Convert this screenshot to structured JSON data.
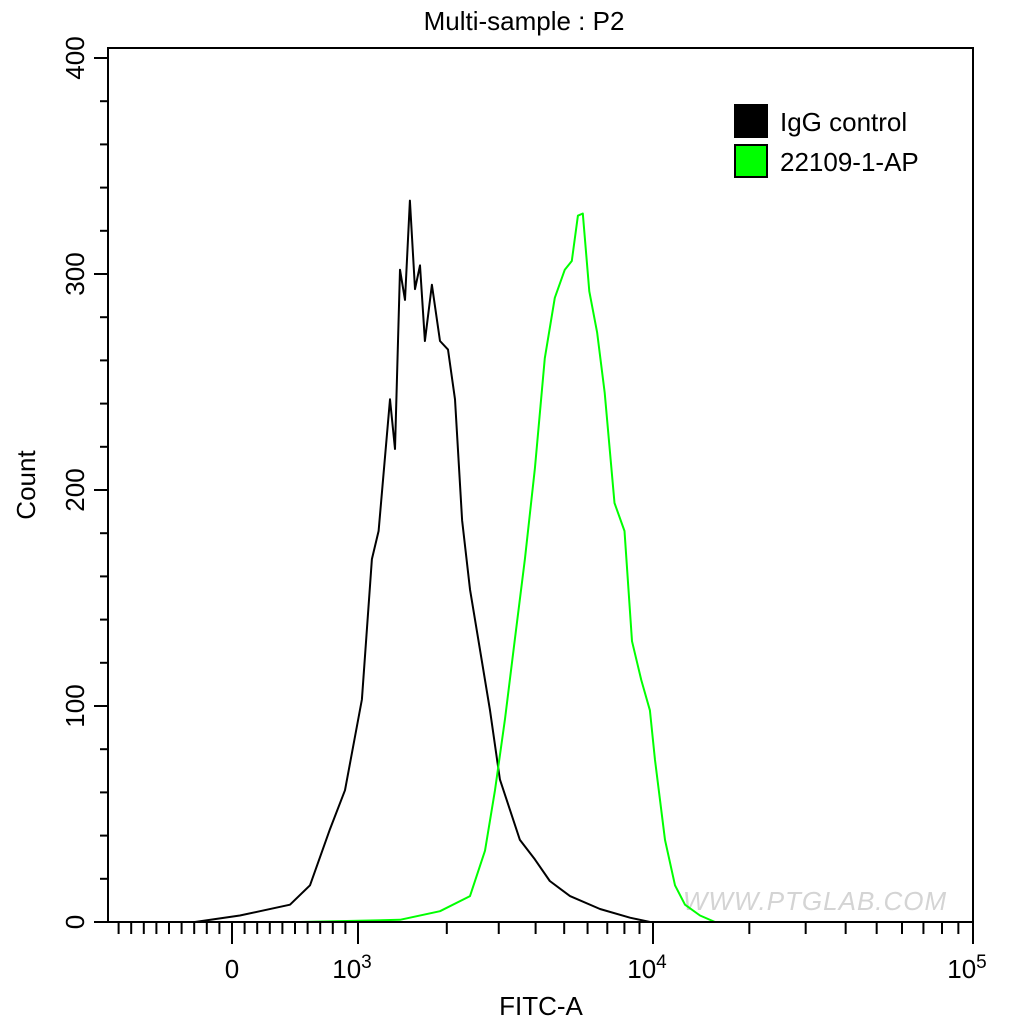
{
  "chart_data": {
    "type": "line",
    "title": "Multi-sample : P2",
    "xlabel": "FITC-A",
    "ylabel": "Count",
    "x_scale": "biexponential",
    "xlim": [
      -1000,
      100000
    ],
    "ylim": [
      0,
      400
    ],
    "x_ticks": [
      {
        "value": 0,
        "label": "0",
        "sup": ""
      },
      {
        "value": 1000,
        "label": "10",
        "sup": "3"
      },
      {
        "value": 10000,
        "label": "10",
        "sup": "4"
      },
      {
        "value": 100000,
        "label": "10",
        "sup": "5"
      }
    ],
    "y_ticks": [
      0,
      100,
      200,
      300,
      400
    ],
    "grid": false,
    "legend_position": "top-right",
    "watermark": "WWW.PTGLAB.COM",
    "series": [
      {
        "name": "IgG control",
        "color": "#000000",
        "x": [
          -294,
          63,
          222,
          460,
          619,
          778,
          897,
          1031,
          1115,
          1174,
          1284,
          1335,
          1388,
          1443,
          1500,
          1560,
          1622,
          1686,
          1781,
          1896,
          2019,
          2132,
          2253,
          2397,
          2591,
          2801,
          3028,
          3273,
          3538,
          3977,
          4470,
          5232,
          6612,
          8355,
          9770
        ],
        "y": [
          0,
          3,
          5,
          8,
          17,
          43,
          61,
          103,
          168,
          181,
          242,
          219,
          302,
          288,
          334,
          293,
          304,
          269,
          295,
          269,
          265,
          242,
          186,
          154,
          126,
          98,
          66,
          52,
          38,
          29,
          19,
          12,
          6,
          2,
          0
        ]
      },
      {
        "name": "22109-1-AP",
        "color": "#00ff00",
        "x": [
          540,
          1388,
          1896,
          2397,
          2695,
          2913,
          3149,
          3404,
          3680,
          3977,
          4299,
          4647,
          5023,
          5307,
          5563,
          5783,
          6082,
          6465,
          6858,
          7404,
          8003,
          8491,
          9128,
          9761,
          10145,
          10903,
          11716,
          12590,
          14024,
          15621
        ],
        "y": [
          0,
          1,
          5,
          12,
          33,
          61,
          94,
          131,
          168,
          210,
          261,
          289,
          302,
          306,
          327,
          328,
          292,
          273,
          245,
          194,
          181,
          130,
          112,
          98,
          75,
          38,
          17,
          8,
          3,
          0
        ]
      }
    ]
  }
}
